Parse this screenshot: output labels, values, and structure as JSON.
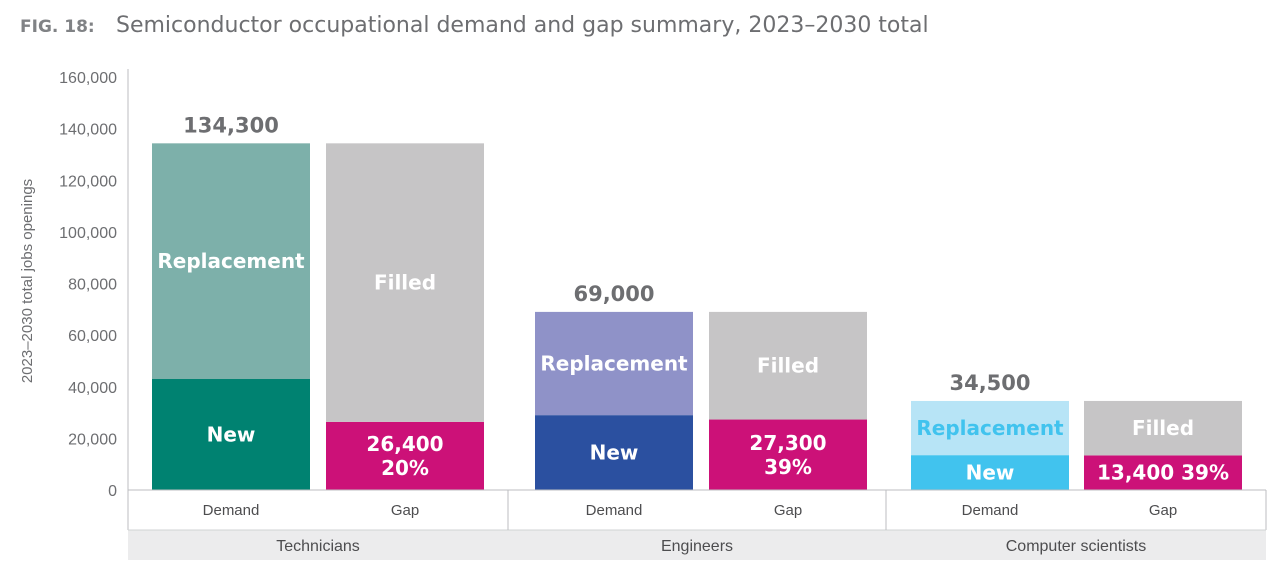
{
  "title": {
    "prefix": "FIG. 18:",
    "text": "Semiconductor occupational demand and gap summary, 2023–2030 total"
  },
  "chart_data": {
    "type": "bar",
    "stacked": true,
    "ylabel": "2023–2030 total jobs openings",
    "ylim": [
      0,
      160000
    ],
    "yticks": [
      0,
      20000,
      40000,
      60000,
      80000,
      100000,
      120000,
      140000,
      160000
    ],
    "ytick_labels": [
      "0",
      "20,000",
      "40,000",
      "60,000",
      "80,000",
      "100,000",
      "120,000",
      "140,000",
      "160,000"
    ],
    "grid": false,
    "colors": {
      "filled": "#c6c5c6",
      "gap": "#cc1178"
    },
    "groups": [
      {
        "name": "Technicians",
        "total_label": "134,300",
        "total": 134300,
        "colors": {
          "new": "#008271",
          "replacement": "#7db0aa"
        },
        "bars": [
          {
            "category": "Demand",
            "segments": [
              {
                "name": "New",
                "value": 43000,
                "label": "New",
                "color_key": "new"
              },
              {
                "name": "Replacement",
                "value": 91300,
                "label": "Replacement",
                "color_key": "replacement"
              }
            ]
          },
          {
            "category": "Gap",
            "segments": [
              {
                "name": "Gap",
                "value": 26400,
                "label": [
                  "26,400",
                  "20%"
                ],
                "color_key": "gap"
              },
              {
                "name": "Filled",
                "value": 107900,
                "label": "Filled",
                "color_key": "filled"
              }
            ]
          }
        ]
      },
      {
        "name": "Engineers",
        "total_label": "69,000",
        "total": 69000,
        "colors": {
          "new": "#2b50a0",
          "replacement": "#8f92c8"
        },
        "bars": [
          {
            "category": "Demand",
            "segments": [
              {
                "name": "New",
                "value": 29000,
                "label": "New",
                "color_key": "new"
              },
              {
                "name": "Replacement",
                "value": 40000,
                "label": "Replacement",
                "color_key": "replacement"
              }
            ]
          },
          {
            "category": "Gap",
            "segments": [
              {
                "name": "Gap",
                "value": 27300,
                "label": [
                  "27,300",
                  "39%"
                ],
                "color_key": "gap"
              },
              {
                "name": "Filled",
                "value": 41700,
                "label": "Filled",
                "color_key": "filled"
              }
            ]
          }
        ]
      },
      {
        "name": "Computer scientists",
        "total_label": "34,500",
        "total": 34500,
        "colors": {
          "new": "#41c3ee",
          "replacement": "#b7e4f6"
        },
        "bars": [
          {
            "category": "Demand",
            "segments": [
              {
                "name": "New",
                "value": 13500,
                "label": "New",
                "color_key": "new"
              },
              {
                "name": "Replacement",
                "value": 21000,
                "label": "Replacement",
                "color_key": "replacement",
                "label_color": "#41c3ee"
              }
            ]
          },
          {
            "category": "Gap",
            "segments": [
              {
                "name": "Gap",
                "value": 13400,
                "label": [
                  "13,400  39%"
                ],
                "color_key": "gap"
              },
              {
                "name": "Filled",
                "value": 21100,
                "label": "Filled",
                "color_key": "filled"
              }
            ]
          }
        ]
      }
    ]
  }
}
